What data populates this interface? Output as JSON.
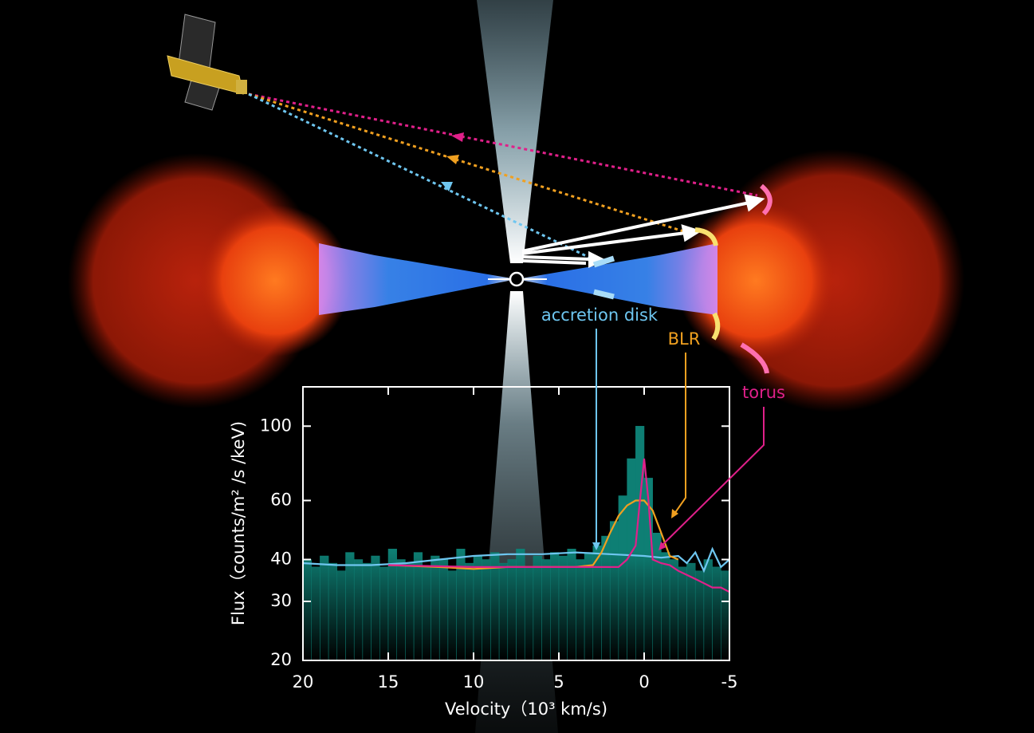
{
  "chart_data": {
    "type": "histogram",
    "xlabel": "Velocity（10³ km/s)",
    "ylabel": "Flux（counts/m² /s /keV)",
    "xlim": [
      20,
      -5
    ],
    "ylim": [
      20,
      131
    ],
    "log_y": true,
    "xticks": [
      20,
      15,
      10,
      5,
      0,
      -5
    ],
    "yticks": [
      20,
      30,
      40,
      60,
      100
    ],
    "bar_color": "#0e7f74",
    "bins": [
      20,
      19.5,
      19,
      18.5,
      18,
      17.5,
      17,
      16.5,
      16,
      15.5,
      15,
      14.5,
      14,
      13.5,
      13,
      12.5,
      12,
      11.5,
      11,
      10.5,
      10,
      9.5,
      9,
      8.5,
      8,
      7.5,
      7,
      6.5,
      6,
      5.5,
      5,
      4.5,
      4,
      3.5,
      3,
      2.5,
      2,
      1.5,
      1,
      0.5,
      0,
      -0.5,
      -1,
      -1.5,
      -2,
      -2.5,
      -3,
      -3.5,
      -4,
      -4.5,
      -5
    ],
    "counts": [
      40,
      38,
      41,
      39,
      37,
      42,
      40,
      39,
      41,
      38,
      43,
      40,
      39,
      42,
      38,
      41,
      40,
      37,
      43,
      39,
      41,
      40,
      42,
      39,
      40,
      43,
      38,
      41,
      40,
      42,
      41,
      43,
      40,
      42,
      44,
      47,
      52,
      62,
      80,
      100,
      70,
      48,
      42,
      40,
      38,
      39,
      37,
      40,
      38,
      37
    ],
    "series": [
      {
        "name": "accretion disk",
        "color": "#6ec6f0",
        "x": [
          20,
          18,
          16,
          14,
          12,
          10,
          8,
          6,
          4,
          2,
          0,
          -1,
          -2,
          -2.5,
          -3,
          -3.5,
          -4,
          -4.5,
          -5
        ],
        "values": [
          39,
          38.5,
          38.5,
          39,
          40,
          41,
          41.5,
          41.5,
          42,
          41.5,
          41,
          40.5,
          41,
          39,
          42,
          37,
          43,
          38,
          40
        ]
      },
      {
        "name": "BLR",
        "color": "#f0a020",
        "x": [
          15,
          12,
          10,
          8,
          6,
          4,
          3,
          2.5,
          2,
          1.5,
          1,
          0.5,
          0,
          -0.5,
          -1,
          -1.5,
          -2
        ],
        "values": [
          38.5,
          38,
          37.5,
          38,
          38,
          38,
          38.5,
          42,
          48,
          54,
          58,
          60,
          60,
          56,
          48,
          41,
          40
        ]
      },
      {
        "name": "torus",
        "color": "#e0208a",
        "x": [
          15,
          10,
          5,
          3,
          2,
          1.5,
          1,
          0.5,
          0.25,
          0,
          -0.25,
          -0.5,
          -1,
          -1.5,
          -2,
          -2.5,
          -3,
          -3.5,
          -4,
          -4.5,
          -5
        ],
        "values": [
          38.5,
          38,
          38,
          38,
          38,
          38,
          40,
          44,
          60,
          80,
          60,
          40,
          39,
          38.5,
          37,
          36,
          35,
          34,
          33,
          33,
          32
        ]
      }
    ]
  }
}
